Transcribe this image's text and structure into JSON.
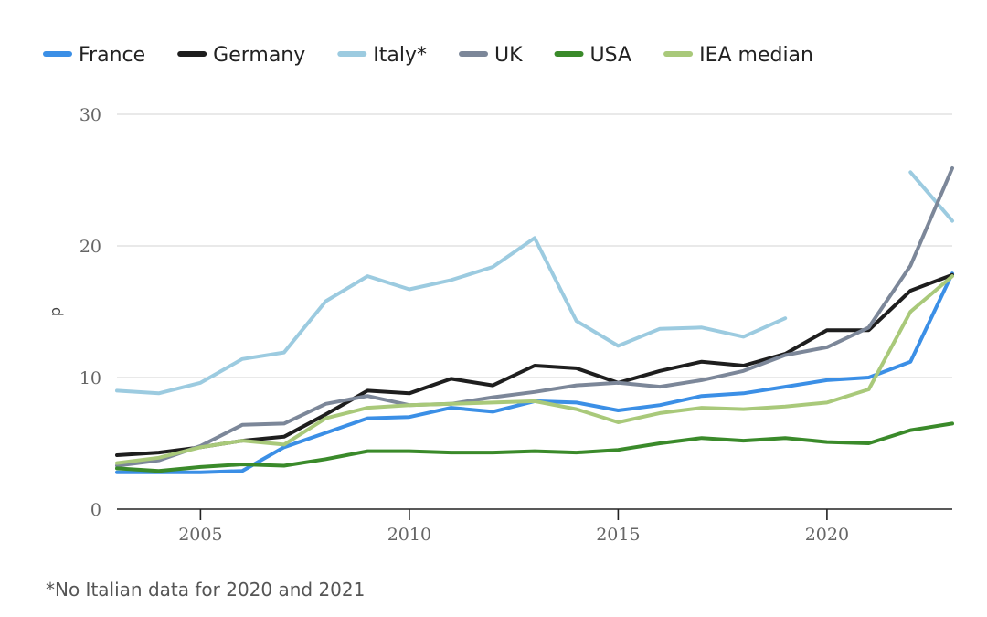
{
  "chart_data": {
    "type": "line",
    "title": "",
    "xlabel": "",
    "ylabel": "p",
    "xlim": [
      2003,
      2023
    ],
    "ylim": [
      0,
      30
    ],
    "xticks": [
      2005,
      2010,
      2015,
      2020
    ],
    "yticks": [
      0,
      10,
      20,
      30
    ],
    "grid": true,
    "legend_position": "top",
    "x": [
      2003,
      2004,
      2005,
      2006,
      2007,
      2008,
      2009,
      2010,
      2011,
      2012,
      2013,
      2014,
      2015,
      2016,
      2017,
      2018,
      2019,
      2020,
      2021,
      2022,
      2023
    ],
    "series": [
      {
        "name": "France",
        "color": "#3b8fe6",
        "values": [
          2.8,
          2.8,
          2.8,
          2.9,
          4.7,
          5.8,
          6.9,
          7.0,
          7.7,
          7.4,
          8.2,
          8.1,
          7.5,
          7.9,
          8.6,
          8.8,
          9.3,
          9.8,
          10.0,
          11.2,
          17.9
        ]
      },
      {
        "name": "Germany",
        "color": "#1e1e1e",
        "values": [
          4.1,
          4.3,
          4.7,
          5.2,
          5.5,
          7.2,
          9.0,
          8.8,
          9.9,
          9.4,
          10.9,
          10.7,
          9.6,
          10.5,
          11.2,
          10.9,
          11.8,
          13.6,
          13.6,
          16.6,
          17.8
        ]
      },
      {
        "name": "Italy*",
        "color": "#9ccbe0",
        "values": [
          9.0,
          8.8,
          9.6,
          11.4,
          11.9,
          15.8,
          17.7,
          16.7,
          17.4,
          18.4,
          20.6,
          14.3,
          12.4,
          13.7,
          13.8,
          13.1,
          14.5,
          null,
          null,
          25.6,
          21.9
        ]
      },
      {
        "name": "UK",
        "color": "#7c8799",
        "values": [
          3.3,
          3.7,
          4.8,
          6.4,
          6.5,
          8.0,
          8.6,
          7.9,
          8.0,
          8.5,
          8.9,
          9.4,
          9.6,
          9.3,
          9.8,
          10.5,
          11.7,
          12.3,
          13.8,
          18.5,
          25.9
        ]
      },
      {
        "name": "USA",
        "color": "#3a8a2a",
        "values": [
          3.1,
          2.9,
          3.2,
          3.4,
          3.3,
          3.8,
          4.4,
          4.4,
          4.3,
          4.3,
          4.4,
          4.3,
          4.5,
          5.0,
          5.4,
          5.2,
          5.4,
          5.1,
          5.0,
          6.0,
          6.5
        ]
      },
      {
        "name": "IEA median",
        "color": "#a9c97a",
        "values": [
          3.5,
          3.9,
          4.7,
          5.2,
          4.9,
          6.9,
          7.7,
          7.9,
          8.0,
          8.1,
          8.2,
          7.6,
          6.6,
          7.3,
          7.7,
          7.6,
          7.8,
          8.1,
          9.1,
          15.0,
          17.7
        ]
      }
    ],
    "footnote": "*No Italian data for 2020 and 2021"
  }
}
